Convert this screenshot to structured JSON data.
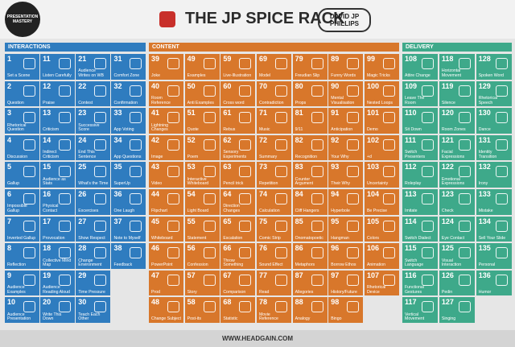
{
  "header": {
    "badge": "PRESENTATION MASTERY",
    "title": "THE JP SPICE RACK",
    "author": "DAVID JP PHILLIPS"
  },
  "sections": [
    {
      "title": "INTERACTIONS",
      "color": "#2f7cbf",
      "columns": [
        [
          {
            "number": 1,
            "label": "Set a Scene"
          },
          {
            "number": 2,
            "label": "Question"
          },
          {
            "number": 3,
            "label": "Rhetorical Question"
          },
          {
            "number": 4,
            "label": "Discussion"
          },
          {
            "number": 5,
            "label": "Gallup"
          },
          {
            "number": 6,
            "label": "Impossible Gallup"
          },
          {
            "number": 7,
            "label": "Inverted Gallup"
          },
          {
            "number": 8,
            "label": "Reflection"
          },
          {
            "number": 9,
            "label": "Audience Examples"
          },
          {
            "number": 10,
            "label": "Audience Presentation"
          }
        ],
        [
          {
            "number": 11,
            "label": "Listen Carefully"
          },
          {
            "number": 12,
            "label": "Praise"
          },
          {
            "number": 13,
            "label": "Criticism"
          },
          {
            "number": 14,
            "label": "Indirect Criticism"
          },
          {
            "number": 15,
            "label": "Audience as Stats"
          },
          {
            "number": 16,
            "label": "Physical Contact"
          },
          {
            "number": 17,
            "label": "Provocation"
          },
          {
            "number": 18,
            "label": "Collective Mind Map"
          },
          {
            "number": 19,
            "label": "Audience Reading Aloud"
          },
          {
            "number": 20,
            "label": "Write This Down"
          }
        ],
        [
          {
            "number": 21,
            "label": "Audience Writes on WB"
          },
          {
            "number": 22,
            "label": "Contest"
          },
          {
            "number": 23,
            "label": "Successive Score"
          },
          {
            "number": 24,
            "label": "End This Sentence"
          },
          {
            "number": 25,
            "label": "What's the Time"
          },
          {
            "number": 26,
            "label": "Excercises"
          },
          {
            "number": 27,
            "label": "Show Respect"
          },
          {
            "number": 28,
            "label": "Change Environment"
          },
          {
            "number": 29,
            "label": "Time Pressure"
          },
          {
            "number": 30,
            "label": "Teach Each Other"
          }
        ],
        [
          {
            "number": 31,
            "label": "Comfort Zone"
          },
          {
            "number": 32,
            "label": "Confirmation"
          },
          {
            "number": 33,
            "label": "App Voting"
          },
          {
            "number": 34,
            "label": "App Questions"
          },
          {
            "number": 35,
            "label": "SuperUp"
          },
          {
            "number": 36,
            "label": "One Laugh"
          },
          {
            "number": 37,
            "label": "Note to Myself"
          },
          {
            "number": 38,
            "label": "Feedback"
          }
        ]
      ]
    },
    {
      "title": "CONTENT",
      "color": "#d8772b",
      "columns": [
        [
          {
            "number": 39,
            "label": "Joke"
          },
          {
            "number": 40,
            "label": "Room Reference"
          },
          {
            "number": 41,
            "label": "Lightning Changes"
          },
          {
            "number": 42,
            "label": "Image"
          },
          {
            "number": 43,
            "label": "Video"
          },
          {
            "number": 44,
            "label": "Flipchart"
          },
          {
            "number": 45,
            "label": "Whiteboard"
          },
          {
            "number": 46,
            "label": "PowerPoint"
          },
          {
            "number": 47,
            "label": "Prod"
          },
          {
            "number": 48,
            "label": "Change Subject"
          }
        ],
        [
          {
            "number": 49,
            "label": "Examples"
          },
          {
            "number": 50,
            "label": "Anti Examples"
          },
          {
            "number": 51,
            "label": "Quote"
          },
          {
            "number": 52,
            "label": "Poem"
          },
          {
            "number": 53,
            "label": "Interactive Whiteboard"
          },
          {
            "number": 54,
            "label": "Light Board"
          },
          {
            "number": 55,
            "label": "Statement"
          },
          {
            "number": 56,
            "label": "Confession"
          },
          {
            "number": 57,
            "label": "Story"
          },
          {
            "number": 58,
            "label": "Post-its"
          }
        ],
        [
          {
            "number": 59,
            "label": "Live-Illustration"
          },
          {
            "number": 60,
            "label": "Cross word"
          },
          {
            "number": 61,
            "label": "Rebus"
          },
          {
            "number": 62,
            "label": "Sensory Experiments"
          },
          {
            "number": 63,
            "label": "Pencil trick"
          },
          {
            "number": 64,
            "label": "Direction Changes"
          },
          {
            "number": 65,
            "label": "Escalation"
          },
          {
            "number": 66,
            "label": "Throw Something"
          },
          {
            "number": 67,
            "label": "Comparison"
          },
          {
            "number": 68,
            "label": "Statistic"
          }
        ],
        [
          {
            "number": 69,
            "label": "Model"
          },
          {
            "number": 70,
            "label": "Contradiction"
          },
          {
            "number": 71,
            "label": "Music"
          },
          {
            "number": 72,
            "label": "Summary"
          },
          {
            "number": 73,
            "label": "Repetition"
          },
          {
            "number": 74,
            "label": "Calculation"
          },
          {
            "number": 75,
            "label": "Comic Strip"
          },
          {
            "number": 76,
            "label": "Sound Effect"
          },
          {
            "number": 77,
            "label": "Read"
          },
          {
            "number": 78,
            "label": "Movie Reference"
          }
        ],
        [
          {
            "number": 79,
            "label": "Freudian Slip"
          },
          {
            "number": 80,
            "label": "Props"
          },
          {
            "number": 81,
            "label": "9/11"
          },
          {
            "number": 82,
            "label": "Recognition"
          },
          {
            "number": 83,
            "label": "Counter Argument"
          },
          {
            "number": 84,
            "label": "Cliff Hangers"
          },
          {
            "number": 85,
            "label": "Onomatopoetic"
          },
          {
            "number": 86,
            "label": "Metaphors"
          },
          {
            "number": 87,
            "label": "Allegories"
          },
          {
            "number": 88,
            "label": "Analogy"
          }
        ],
        [
          {
            "number": 89,
            "label": "Funny Words"
          },
          {
            "number": 90,
            "label": "Mental Visualisation"
          },
          {
            "number": 91,
            "label": "Anticipation"
          },
          {
            "number": 92,
            "label": "Your Why"
          },
          {
            "number": 93,
            "label": "Their Why"
          },
          {
            "number": 94,
            "label": "Hyperbole"
          },
          {
            "number": 95,
            "label": "Hangman"
          },
          {
            "number": 96,
            "label": "Borrow Ethos"
          },
          {
            "number": 97,
            "label": "History/Future"
          },
          {
            "number": 98,
            "label": "Bingo"
          }
        ],
        [
          {
            "number": 99,
            "label": "Magic Tricks"
          },
          {
            "number": 100,
            "label": "Nested Loops"
          },
          {
            "number": 101,
            "label": "Demo"
          },
          {
            "number": 102,
            "label": "+d"
          },
          {
            "number": 103,
            "label": "Uncertainty"
          },
          {
            "number": 104,
            "label": "Be Precise"
          },
          {
            "number": 105,
            "label": "Colors"
          },
          {
            "number": 106,
            "label": "Animation"
          },
          {
            "number": 107,
            "label": "Rhetorical Device"
          }
        ]
      ]
    },
    {
      "title": "DELIVERY",
      "color": "#3ea98a",
      "columns": [
        [
          {
            "number": 108,
            "label": "Attire Change"
          },
          {
            "number": 109,
            "label": "Leave The Room"
          },
          {
            "number": 110,
            "label": "Sit Down"
          },
          {
            "number": 111,
            "label": "Switch Presenters"
          },
          {
            "number": 112,
            "label": "Roleplay"
          },
          {
            "number": 113,
            "label": "Imitate"
          },
          {
            "number": 114,
            "label": "Switch Dialect"
          },
          {
            "number": 115,
            "label": "Switch Language"
          },
          {
            "number": 116,
            "label": "Functional Gestures"
          },
          {
            "number": 117,
            "label": "Vertical Movement"
          }
        ],
        [
          {
            "number": 118,
            "label": "Horizontal Movement"
          },
          {
            "number": 119,
            "label": "Silence"
          },
          {
            "number": 120,
            "label": "Room Zones"
          },
          {
            "number": 121,
            "label": "Facial Expressions"
          },
          {
            "number": 122,
            "label": "Emotional Expressions"
          },
          {
            "number": 123,
            "label": "Check"
          },
          {
            "number": 124,
            "label": "Eye Contact"
          },
          {
            "number": 125,
            "label": "Visual Interaction"
          },
          {
            "number": 126,
            "label": "Pedin"
          },
          {
            "number": 127,
            "label": "Singing"
          }
        ],
        [
          {
            "number": 128,
            "label": "Spoken Word"
          },
          {
            "number": 129,
            "label": "Rhetorical Speech"
          },
          {
            "number": 130,
            "label": "Dance"
          },
          {
            "number": 131,
            "label": "Identity Transition"
          },
          {
            "number": 132,
            "label": "Irony"
          },
          {
            "number": 133,
            "label": "Mistake"
          },
          {
            "number": 134,
            "label": "Sell Your Slide"
          },
          {
            "number": 135,
            "label": "Personal"
          },
          {
            "number": 136,
            "label": "Humor"
          }
        ]
      ]
    }
  ],
  "footer": "WWW.HEADGAIN.COM"
}
